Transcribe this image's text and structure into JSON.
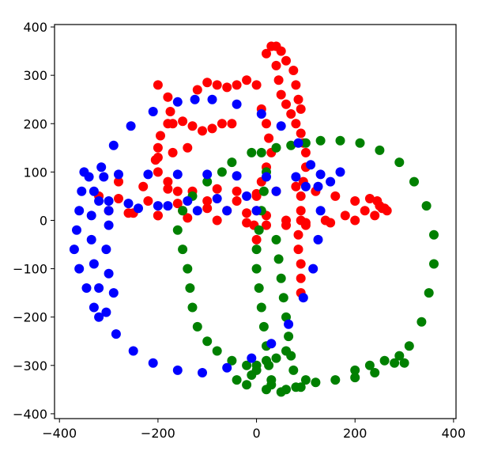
{
  "chart_data": {
    "type": "scatter",
    "title": "",
    "xlabel": "",
    "ylabel": "",
    "xlim": [
      -410,
      405
    ],
    "ylim": [
      -410,
      405
    ],
    "grid": false,
    "legend": "none",
    "x_ticks": [
      -400,
      -200,
      0,
      200,
      400
    ],
    "y_ticks": [
      -400,
      -300,
      -200,
      -100,
      0,
      100,
      200,
      300,
      400
    ],
    "x_tick_labels": [
      "−400",
      "−200",
      "0",
      "200",
      "400"
    ],
    "y_tick_labels": [
      "−400",
      "−300",
      "−200",
      "−100",
      "0",
      "100",
      "200",
      "300",
      "400"
    ],
    "series": [
      {
        "color": "#ff0000",
        "shape": "red-wandering-curve",
        "points": [
          [
            -300,
            20
          ],
          [
            -250,
            15
          ],
          [
            -200,
            10
          ],
          [
            -150,
            20
          ],
          [
            -100,
            25
          ],
          [
            -60,
            20
          ],
          [
            -20,
            15
          ],
          [
            20,
            10
          ],
          [
            60,
            0
          ],
          [
            100,
            -5
          ],
          [
            140,
            0
          ],
          [
            180,
            10
          ],
          [
            220,
            20
          ],
          [
            255,
            25
          ],
          [
            265,
            20
          ],
          [
            240,
            10
          ],
          [
            200,
            0
          ],
          [
            150,
            -5
          ],
          [
            100,
            -10
          ],
          [
            60,
            -10
          ],
          [
            20,
            -10
          ],
          [
            -20,
            -5
          ],
          [
            -80,
            0
          ],
          [
            -140,
            5
          ],
          [
            -200,
            10
          ],
          [
            -260,
            15
          ],
          [
            -280,
            80
          ],
          [
            -230,
            70
          ],
          [
            -180,
            65
          ],
          [
            -130,
            60
          ],
          [
            -80,
            65
          ],
          [
            -40,
            60
          ],
          [
            0,
            55
          ],
          [
            40,
            60
          ],
          [
            80,
            70
          ],
          [
            -320,
            50
          ],
          [
            -280,
            45
          ],
          [
            -220,
            40
          ],
          [
            -160,
            35
          ],
          [
            -100,
            40
          ],
          [
            -40,
            40
          ],
          [
            -200,
            280
          ],
          [
            -180,
            255
          ],
          [
            -175,
            225
          ],
          [
            -180,
            200
          ],
          [
            -195,
            175
          ],
          [
            -200,
            150
          ],
          [
            -205,
            125
          ],
          [
            -200,
            100
          ],
          [
            -180,
            80
          ],
          [
            -160,
            60
          ],
          [
            -200,
            130
          ],
          [
            -170,
            140
          ],
          [
            -140,
            150
          ],
          [
            -170,
            200
          ],
          [
            -150,
            205
          ],
          [
            -130,
            195
          ],
          [
            -110,
            185
          ],
          [
            -90,
            190
          ],
          [
            -70,
            200
          ],
          [
            -50,
            200
          ],
          [
            -120,
            270
          ],
          [
            -100,
            285
          ],
          [
            -80,
            280
          ],
          [
            -60,
            275
          ],
          [
            -40,
            280
          ],
          [
            -20,
            290
          ],
          [
            0,
            280
          ],
          [
            10,
            230
          ],
          [
            20,
            200
          ],
          [
            25,
            170
          ],
          [
            30,
            140
          ],
          [
            20,
            110
          ],
          [
            10,
            80
          ],
          [
            0,
            50
          ],
          [
            0,
            20
          ],
          [
            -5,
            -10
          ],
          [
            0,
            -40
          ],
          [
            20,
            345
          ],
          [
            30,
            360
          ],
          [
            40,
            360
          ],
          [
            50,
            350
          ],
          [
            60,
            330
          ],
          [
            75,
            310
          ],
          [
            80,
            280
          ],
          [
            85,
            250
          ],
          [
            90,
            230
          ],
          [
            40,
            320
          ],
          [
            45,
            290
          ],
          [
            50,
            260
          ],
          [
            60,
            240
          ],
          [
            70,
            220
          ],
          [
            80,
            200
          ],
          [
            90,
            180
          ],
          [
            95,
            160
          ],
          [
            100,
            140
          ],
          [
            100,
            110
          ],
          [
            95,
            80
          ],
          [
            90,
            50
          ],
          [
            90,
            20
          ],
          [
            90,
            0
          ],
          [
            85,
            -30
          ],
          [
            85,
            -60
          ],
          [
            90,
            -90
          ],
          [
            90,
            -120
          ],
          [
            90,
            -150
          ],
          [
            120,
            60
          ],
          [
            160,
            50
          ],
          [
            200,
            40
          ],
          [
            230,
            45
          ],
          [
            245,
            40
          ],
          [
            250,
            30
          ],
          [
            260,
            25
          ]
        ]
      },
      {
        "color": "#008000",
        "shape": "green-loop",
        "points": [
          [
            -10,
            140
          ],
          [
            10,
            140
          ],
          [
            40,
            150
          ],
          [
            70,
            155
          ],
          [
            100,
            160
          ],
          [
            130,
            165
          ],
          [
            170,
            165
          ],
          [
            210,
            160
          ],
          [
            250,
            145
          ],
          [
            290,
            120
          ],
          [
            320,
            80
          ],
          [
            345,
            30
          ],
          [
            360,
            -30
          ],
          [
            360,
            -90
          ],
          [
            350,
            -150
          ],
          [
            335,
            -210
          ],
          [
            310,
            -260
          ],
          [
            280,
            -295
          ],
          [
            240,
            -315
          ],
          [
            200,
            -325
          ],
          [
            160,
            -330
          ],
          [
            120,
            -335
          ],
          [
            80,
            -345
          ],
          [
            50,
            -355
          ],
          [
            20,
            -350
          ],
          [
            -20,
            -340
          ],
          [
            -40,
            -330
          ],
          [
            -10,
            -320
          ],
          [
            30,
            -330
          ],
          [
            0,
            -300
          ],
          [
            20,
            -290
          ],
          [
            40,
            -285
          ],
          [
            60,
            -270
          ],
          [
            -50,
            120
          ],
          [
            -70,
            100
          ],
          [
            -100,
            80
          ],
          [
            -130,
            50
          ],
          [
            -150,
            20
          ],
          [
            -160,
            -20
          ],
          [
            -150,
            -60
          ],
          [
            -140,
            -100
          ],
          [
            -135,
            -140
          ],
          [
            -130,
            -180
          ],
          [
            -120,
            -220
          ],
          [
            -100,
            -250
          ],
          [
            -80,
            -270
          ],
          [
            -50,
            -290
          ],
          [
            -20,
            -300
          ],
          [
            0,
            -310
          ],
          [
            20,
            100
          ],
          [
            15,
            60
          ],
          [
            10,
            20
          ],
          [
            5,
            -20
          ],
          [
            0,
            -60
          ],
          [
            0,
            -100
          ],
          [
            5,
            -140
          ],
          [
            10,
            -180
          ],
          [
            15,
            -220
          ],
          [
            20,
            -260
          ],
          [
            25,
            -300
          ],
          [
            30,
            -340
          ],
          [
            60,
            -350
          ],
          [
            90,
            -345
          ],
          [
            100,
            -330
          ],
          [
            40,
            -40
          ],
          [
            45,
            -80
          ],
          [
            50,
            -120
          ],
          [
            55,
            -160
          ],
          [
            60,
            -200
          ],
          [
            65,
            -240
          ],
          [
            70,
            -280
          ],
          [
            75,
            -310
          ],
          [
            200,
            -310
          ],
          [
            230,
            -300
          ],
          [
            260,
            -290
          ],
          [
            290,
            -280
          ],
          [
            300,
            -295
          ]
        ]
      },
      {
        "color": "#0000ff",
        "shape": "blue-circle",
        "points": [
          [
            -90,
            250
          ],
          [
            -40,
            240
          ],
          [
            10,
            220
          ],
          [
            50,
            195
          ],
          [
            85,
            160
          ],
          [
            110,
            115
          ],
          [
            125,
            70
          ],
          [
            130,
            20
          ],
          [
            125,
            -40
          ],
          [
            115,
            -100
          ],
          [
            95,
            -160
          ],
          [
            65,
            -215
          ],
          [
            30,
            -255
          ],
          [
            -10,
            -285
          ],
          [
            -60,
            -305
          ],
          [
            -110,
            -315
          ],
          [
            -160,
            -310
          ],
          [
            -210,
            -295
          ],
          [
            -250,
            -270
          ],
          [
            -285,
            -235
          ],
          [
            -305,
            -190
          ],
          [
            -320,
            -140
          ],
          [
            -330,
            -90
          ],
          [
            -335,
            -40
          ],
          [
            -335,
            10
          ],
          [
            -330,
            60
          ],
          [
            -315,
            110
          ],
          [
            -290,
            155
          ],
          [
            -255,
            195
          ],
          [
            -210,
            225
          ],
          [
            -160,
            245
          ],
          [
            -125,
            250
          ],
          [
            -350,
            100
          ],
          [
            -355,
            60
          ],
          [
            -360,
            20
          ],
          [
            -365,
            -20
          ],
          [
            -370,
            -60
          ],
          [
            -360,
            -100
          ],
          [
            -345,
            -140
          ],
          [
            -330,
            -180
          ],
          [
            -320,
            -200
          ],
          [
            -310,
            90
          ],
          [
            -300,
            40
          ],
          [
            -300,
            -10
          ],
          [
            -305,
            -60
          ],
          [
            -300,
            -110
          ],
          [
            -290,
            -150
          ],
          [
            -340,
            90
          ],
          [
            -280,
            95
          ],
          [
            -220,
            95
          ],
          [
            -160,
            95
          ],
          [
            -100,
            95
          ],
          [
            -40,
            92
          ],
          [
            20,
            90
          ],
          [
            80,
            90
          ],
          [
            130,
            95
          ],
          [
            170,
            100
          ],
          [
            -320,
            40
          ],
          [
            -260,
            35
          ],
          [
            -200,
            30
          ],
          [
            -140,
            40
          ],
          [
            -80,
            45
          ],
          [
            -20,
            50
          ],
          [
            40,
            60
          ],
          [
            100,
            70
          ],
          [
            150,
            80
          ],
          [
            -300,
            20
          ],
          [
            -240,
            25
          ],
          [
            -180,
            30
          ],
          [
            -120,
            20
          ],
          [
            -60,
            20
          ],
          [
            0,
            20
          ]
        ]
      }
    ]
  }
}
